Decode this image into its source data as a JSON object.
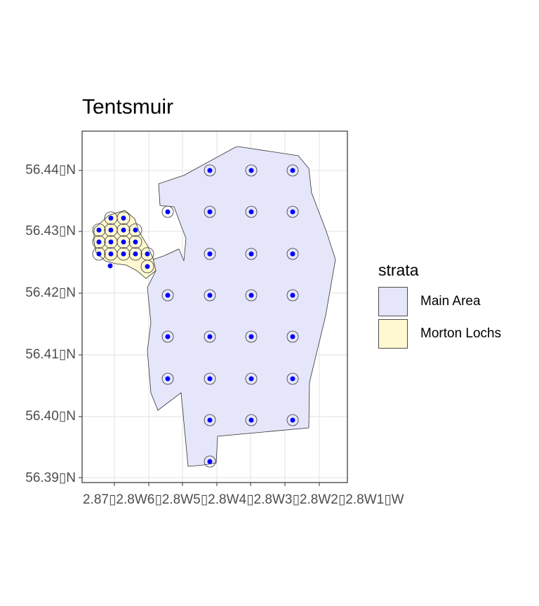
{
  "title": "Tentsmuir",
  "legend": {
    "title": "strata",
    "items": [
      {
        "label": "Main Area",
        "color": "#e6e6fa"
      },
      {
        "label": "Morton Lochs",
        "color": "#fff8d0"
      }
    ]
  },
  "axes": {
    "y_ticks": [
      "56.44▯N",
      "56.43▯N",
      "56.42▯N",
      "56.41▯N",
      "56.40▯N",
      "56.39▯N"
    ],
    "x_tick_text": "2.87▯2.8W6▯2.8W5▯2.8W4▯2.8W3▯2.8W2▯2.8W1▯W"
  },
  "colors": {
    "grid": "#ebebeb",
    "panel_border": "#333333",
    "point": "#0000ff",
    "buffer_stroke": "#333333"
  }
}
